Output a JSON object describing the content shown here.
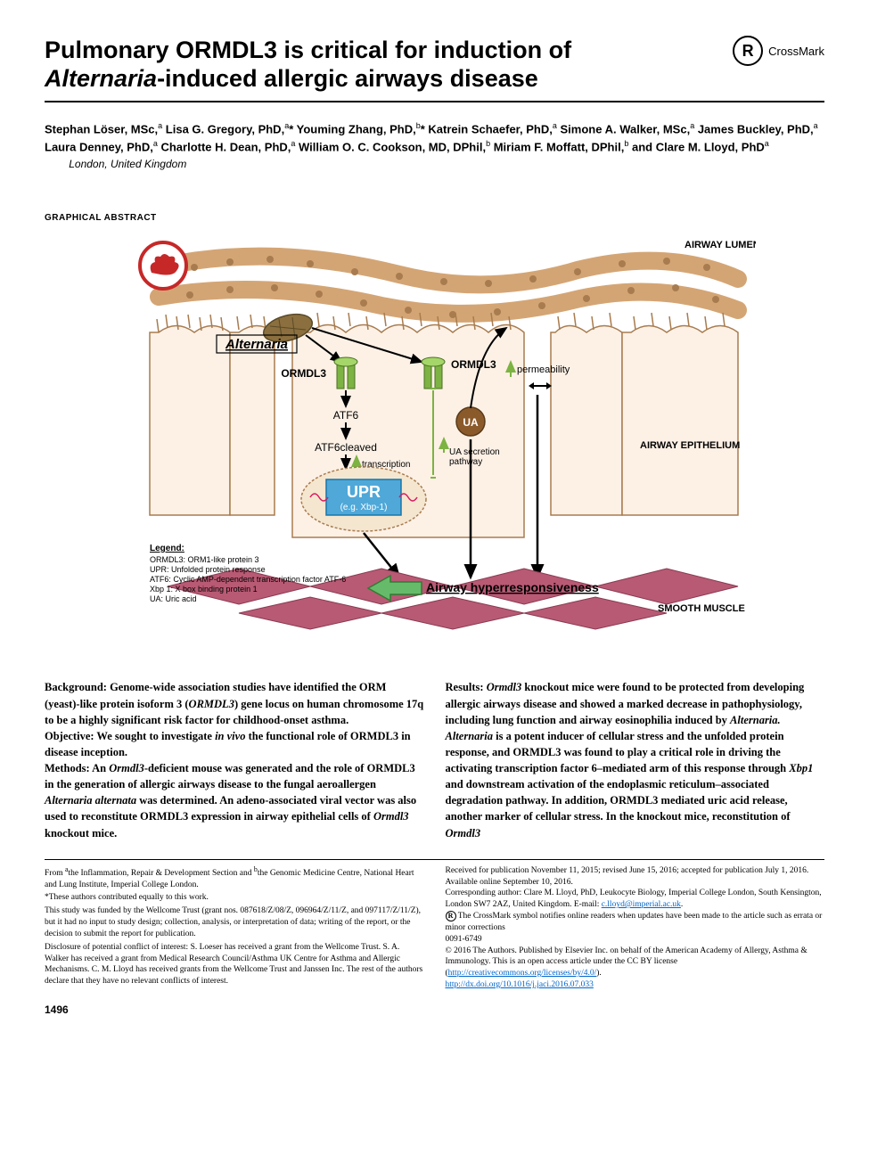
{
  "title": {
    "line1": "Pulmonary ORMDL3 is critical for induction of",
    "line2_italic": "Alternaria",
    "line2_rest": "-induced allergic airways disease"
  },
  "crossmark_label": "CrossMark",
  "crossmark_glyph": "R",
  "authors_html": "Stephan Löser, MSc,<sup>a</sup> Lisa G. Gregory, PhD,<sup>a</sup>* Youming Zhang, PhD,<sup>b</sup>* Katrein Schaefer, PhD,<sup>a</sup> Simone A. Walker, MSc,<sup>a</sup> James Buckley, PhD,<sup>a</sup> Laura Denney, PhD,<sup>a</sup> Charlotte H. Dean, PhD,<sup>a</sup> William O. C. Cookson, MD, DPhil,<sup>b</sup> Miriam F. Moffatt, DPhil,<sup>b</sup> and Clare M. Lloyd, PhD<sup>a</sup>",
  "location": "London, United Kingdom",
  "section_label": "GRAPHICAL ABSTRACT",
  "ga": {
    "labels": {
      "airway_lumen": "AIRWAY LUMEN",
      "alternaria": "Alternaria",
      "ormdl3_l": "ORMDL3",
      "ormdl3_r": "ORMDL3",
      "permeability": "permeability",
      "atf6": "ATF6",
      "atf6c": "ATF6cleaved",
      "transcription": "transcription",
      "upr": "UPR",
      "upr_sub": "(e.g. Xbp-1)",
      "ua": "UA",
      "ua_secretion": "UA secretion\npathway",
      "airway_epi": "AIRWAY EPITHELIUM",
      "ahr": "Airway hyperresponsiveness",
      "smooth_muscle": "SMOOTH MUSCLE"
    },
    "legend_title": "Legend:",
    "legend_items": [
      "ORMDL3: ORM1-like protein 3",
      "UPR: Unfolded protein response",
      "ATF6: Cyclic AMP-dependent transcription factor ATF-6",
      "Xbp 1: X box binding protein 1",
      "UA: Uric acid"
    ],
    "colors": {
      "epithelium_fill": "#fdf1e6",
      "epithelium_stroke": "#a87c4f",
      "muscle": "#b85a74",
      "mouse_circle": "#c62828",
      "upr_fill": "#4fa8d8",
      "ua_fill": "#8b5a2b",
      "ormdl3_fill": "#7cb342",
      "arrow_green": "#7cb342",
      "arrow_black": "#000000",
      "ahr_arrow": "#66bb6a",
      "dots": "#d4a574"
    }
  },
  "abstract": {
    "left": {
      "background_label": "Background:",
      "background_text": " Genome-wide association studies have identified the ORM (yeast)-like protein isoform 3 (",
      "background_ital1": "ORMDL3",
      "background_text2": ") gene locus on human chromosome 17q to be a highly significant risk factor for childhood-onset asthma.",
      "objective_label": "Objective:",
      "objective_text": " We sought to investigate ",
      "objective_ital": "in vivo",
      "objective_text2": " the functional role of ORMDL3 in disease inception.",
      "methods_label": "Methods:",
      "methods_text": " An ",
      "methods_ital1": "Ormdl3",
      "methods_text2": "-deficient mouse was generated and the role of ORMDL3 in the generation of allergic airways disease to the fungal aeroallergen ",
      "methods_ital2": "Alternaria alternata",
      "methods_text3": " was determined. An adeno-associated viral vector was also used to reconstitute ORMDL3 expression in airway epithelial cells of ",
      "methods_ital3": "Ormdl3",
      "methods_text4": " knockout mice."
    },
    "right": {
      "results_label": "Results:",
      "results_text": " ",
      "results_ital1": "Ormdl3",
      "results_text2": " knockout mice were found to be protected from developing allergic airways disease and showed a marked decrease in pathophysiology, including lung function and airway eosinophilia induced by ",
      "results_ital2": "Alternaria. Alternaria",
      "results_text3": " is a potent inducer of cellular stress and the unfolded protein response, and ORMDL3 was found to play a critical role in driving the activating transcription factor 6–mediated arm of this response through ",
      "results_ital3": "Xbp1",
      "results_text4": " and downstream activation of the endoplasmic reticulum–associated degradation pathway. In addition, ORMDL3 mediated uric acid release, another marker of cellular stress. In the knockout mice, reconstitution of ",
      "results_ital4": "Ormdl3"
    }
  },
  "footer": {
    "left": [
      "From <sup>a</sup>the Inflammation, Repair & Development Section and <sup>b</sup>the Genomic Medicine Centre, National Heart and Lung Institute, Imperial College London.",
      "*These authors contributed equally to this work.",
      "This study was funded by the Wellcome Trust (grant nos. 087618/Z/08/Z, 096964/Z/11/Z, and 097117/Z/11/Z), but it had no input to study design; collection, analysis, or interpretation of data; writing of the report, or the decision to submit the report for publication.",
      "Disclosure of potential conflict of interest: S. Loeser has received a grant from the Wellcome Trust. S. A. Walker has received a grant from Medical Research Council/Asthma UK Centre for Asthma and Allergic Mechanisms. C. M. Lloyd has received grants from the Wellcome Trust and Janssen Inc. The rest of the authors declare that they have no relevant conflicts of interest."
    ],
    "right": {
      "received": "Received for publication November 11, 2015; revised June 15, 2016; accepted for publication July 1, 2016.",
      "available": "Available online September 10, 2016.",
      "corr": "Corresponding author: Clare M. Lloyd, PhD, Leukocyte Biology, Imperial College London, South Kensington, London SW7 2AZ, United Kingdom. E-mail: ",
      "email": "c.lloyd@imperial.ac.uk",
      "crossmark_note": " The CrossMark symbol notifies online readers when updates have been made to the article such as errata or minor corrections",
      "issn": "0091-6749",
      "copyright": "© 2016 The Authors. Published by Elsevier Inc. on behalf of the American Academy of Allergy, Asthma & Immunology. This is an open access article under the CC BY license (",
      "cc_url": "http://creativecommons.org/licenses/by/4.0/",
      "cc_close": ").",
      "doi": "http://dx.doi.org/10.1016/j.jaci.2016.07.033"
    }
  },
  "page_number": "1496"
}
